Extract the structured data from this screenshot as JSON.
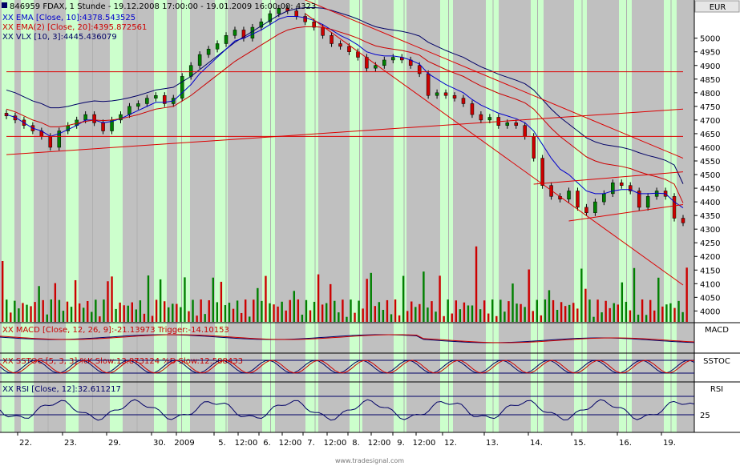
{
  "header": {
    "title": "846959  FDAX, 1 Stunde - 19.12.2008 17:00:00 - 19.01.2009 16:00:00: 4323",
    "currency": "EUR"
  },
  "legend": [
    {
      "text": "XX EMA [Close, 10]:4378.543525",
      "color": "#0000cc"
    },
    {
      "text": "XX EMA(2) [Close, 20]:4395.872561",
      "color": "#cc0000"
    },
    {
      "text": "XX VLX [10, 3]:4445.436079",
      "color": "#000066"
    }
  ],
  "panels": {
    "macd": {
      "label": "MACD",
      "text": "XX MACD [Close, 12, 26, 9]:-21.13973  Trigger:-14.10153"
    },
    "sstoc": {
      "label": "SSTOC",
      "text": "XX SSTOC [5, 3, 3]  %K Slow:13.873124  %D Slow:12.588433"
    },
    "rsi": {
      "label": "RSI",
      "text": "XX RSI [Close, 12]:32.611217",
      "tick": "25"
    }
  },
  "footer": "www.tradesignal.com",
  "colors": {
    "highlight": "#ccffcc",
    "grid_bg": "#c0c0c0",
    "candle_up": "#008000",
    "candle_down": "#cc0000",
    "trendline": "#dd0000",
    "ema10": "#0000cc",
    "ema20": "#cc0000",
    "vlx": "#000066"
  },
  "chart_data": {
    "type": "candlestick",
    "title": "846959  FDAX, 1 Stunde - 19.12.2008 17:00:00 - 19.01.2009 16:00:00: 4323",
    "y_axis": {
      "label": "EUR",
      "range": [
        3960,
        5140
      ],
      "ticks": [
        4000,
        4050,
        4100,
        4150,
        4200,
        4250,
        4300,
        4350,
        4400,
        4450,
        4500,
        4550,
        4600,
        4650,
        4700,
        4750,
        4800,
        4850,
        4900,
        4950,
        5000
      ]
    },
    "x_tick_labels": [
      "22.",
      "23.",
      "29.",
      "30.",
      "2009",
      "5.",
      "12:00",
      "6.",
      "12:00",
      "7.",
      "12:00",
      "8.",
      "12:00",
      "9.",
      "12:00",
      "12.",
      "13.",
      "14.",
      "15.",
      "16.",
      "19."
    ],
    "close_path": [
      4715,
      4700,
      4680,
      4660,
      4640,
      4600,
      4660,
      4680,
      4700,
      4720,
      4690,
      4660,
      4700,
      4720,
      4750,
      4760,
      4780,
      4790,
      4760,
      4780,
      4860,
      4900,
      4940,
      4960,
      4980,
      5010,
      5030,
      5000,
      5040,
      5060,
      5090,
      5110,
      5100,
      5080,
      5060,
      5040,
      5010,
      4980,
      4970,
      4950,
      4930,
      4890,
      4900,
      4920,
      4930,
      4920,
      4900,
      4870,
      4790,
      4800,
      4790,
      4780,
      4760,
      4720,
      4700,
      4710,
      4680,
      4690,
      4680,
      4640,
      4560,
      4460,
      4420,
      4410,
      4440,
      4380,
      4360,
      4400,
      4430,
      4470,
      4460,
      4440,
      4380,
      4420,
      4440,
      4420,
      4340,
      4323
    ],
    "ema10": [
      4720,
      4710,
      4690,
      4670,
      4660,
      4640,
      4650,
      4665,
      4680,
      4700,
      4700,
      4690,
      4695,
      4705,
      4720,
      4735,
      4750,
      4765,
      4765,
      4770,
      4800,
      4830,
      4870,
      4900,
      4930,
      4960,
      4990,
      5000,
      5015,
      5030,
      5050,
      5070,
      5080,
      5080,
      5075,
      5065,
      5050,
      5030,
      5010,
      4995,
      4975,
      4950,
      4940,
      4935,
      4935,
      4930,
      4920,
      4905,
      4870,
      4850,
      4830,
      4815,
      4800,
      4775,
      4755,
      4740,
      4725,
      4715,
      4705,
      4690,
      4660,
      4610,
      4560,
      4520,
      4500,
      4470,
      4440,
      4430,
      4430,
      4440,
      4445,
      4445,
      4430,
      4430,
      4432,
      4430,
      4400,
      4378
    ],
    "ema20": [
      4740,
      4730,
      4715,
      4700,
      4690,
      4675,
      4675,
      4680,
      4688,
      4695,
      4700,
      4698,
      4700,
      4705,
      4712,
      4720,
      4730,
      4740,
      4745,
      4750,
      4770,
      4790,
      4815,
      4840,
      4865,
      4890,
      4915,
      4935,
      4955,
      4975,
      4995,
      5015,
      5030,
      5038,
      5042,
      5042,
      5040,
      5032,
      5022,
      5012,
      5000,
      4985,
      4972,
      4965,
      4960,
      4955,
      4948,
      4938,
      4915,
      4900,
      4885,
      4872,
      4860,
      4842,
      4825,
      4812,
      4798,
      4787,
      4776,
      4763,
      4740,
      4705,
      4670,
      4640,
      4615,
      4590,
      4565,
      4550,
      4540,
      4535,
      4530,
      4522,
      4510,
      4500,
      4492,
      4482,
      4465,
      4396
    ],
    "trendlines": [
      {
        "from": [
          0,
          4573
        ],
        "to": [
          77,
          4740
        ]
      },
      {
        "from": [
          0,
          4877
        ],
        "to": [
          77,
          4877
        ]
      },
      {
        "from": [
          0,
          4640
        ],
        "to": [
          77,
          4640
        ]
      },
      {
        "from": [
          34,
          5140
        ],
        "to": [
          77,
          4560
        ]
      },
      {
        "from": [
          34,
          5090
        ],
        "to": [
          77,
          4095
        ]
      },
      {
        "from": [
          64,
          4330
        ],
        "to": [
          77,
          4390
        ]
      },
      {
        "from": [
          60,
          4465
        ],
        "to": [
          77,
          4510
        ]
      }
    ]
  }
}
